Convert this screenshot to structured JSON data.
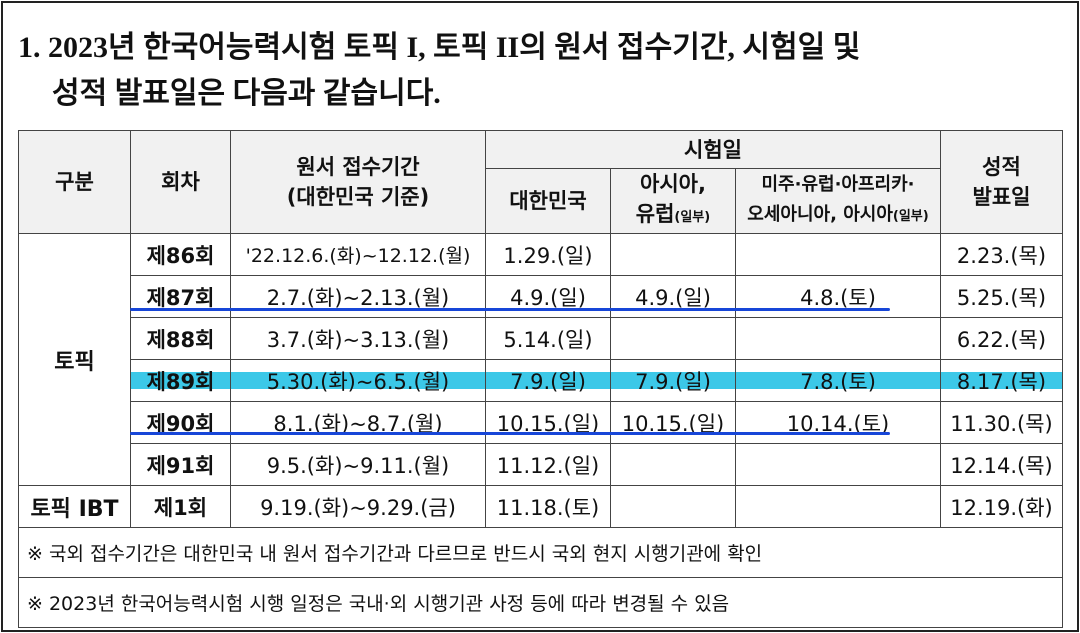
{
  "title": {
    "line1": "1. 2023년 한국어능력시험 토픽 I, 토픽 II의 원서 접수기간, 시험일 및",
    "line2": "성적 발표일은 다음과 같습니다."
  },
  "table": {
    "header": {
      "group": "구분",
      "round": "회차",
      "period": [
        "원서 접수기간",
        "(대한민국 기준)"
      ],
      "exam": "시험일",
      "korea": "대한민국",
      "asia": [
        "아시아,",
        "유럽",
        "(일부)"
      ],
      "americas": [
        "미주·유럽·아프리카·",
        "오세아니아, 아시아",
        "(일부)"
      ],
      "result": [
        "성적",
        "발표일"
      ]
    },
    "groups": [
      {
        "label": "토픽",
        "rows": [
          [
            "제86회",
            "'22.12.6.(화)~12.12.(월)",
            "1.29.(일)",
            null,
            null,
            "2.23.(목)"
          ],
          [
            "제87회",
            "2.7.(화)~2.13.(월)",
            "4.9.(일)",
            "4.9.(일)",
            "4.8.(토)",
            "5.25.(목)"
          ],
          [
            "제88회",
            "3.7.(화)~3.13.(월)",
            "5.14.(일)",
            null,
            null,
            "6.22.(목)"
          ],
          [
            "제89회",
            "5.30.(화)~6.5.(월)",
            "7.9.(일)",
            "7.9.(일)",
            "7.8.(토)",
            "8.17.(목)"
          ],
          [
            "제90회",
            "8.1.(화)~8.7.(월)",
            "10.15.(일)",
            "10.15.(일)",
            "10.14.(토)",
            "11.30.(목)"
          ],
          [
            "제91회",
            "9.5.(화)~9.11.(월)",
            "11.12.(일)",
            null,
            null,
            "12.14.(목)"
          ]
        ]
      },
      {
        "label": "토픽 IBT",
        "rows": [
          [
            "제1회",
            "9.19.(화)~9.29.(금)",
            "11.18.(토)",
            null,
            null,
            "12.19.(화)"
          ]
        ]
      }
    ],
    "notes": [
      "※ 국외 접수기간은 대한민국 내 원서 접수기간과 다르므로 반드시 국외 현지 시행기관에 확인",
      "※ 2023년 한국어능력시험 시행 일정은 국내·외 시행기관 사정 등에 따라 변경될 수 있음"
    ]
  }
}
